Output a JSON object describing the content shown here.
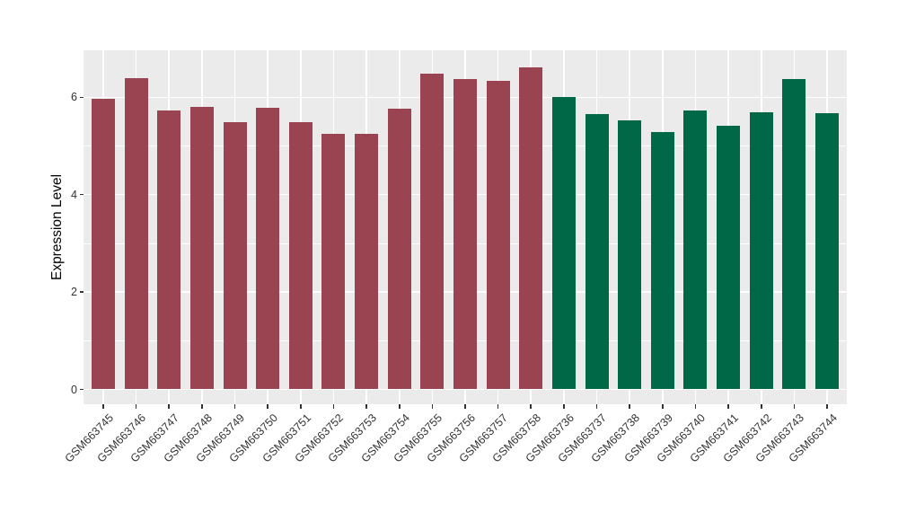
{
  "chart_data": {
    "type": "bar",
    "title": "",
    "xlabel": "",
    "ylabel": "Expression Level",
    "categories": [
      "GSM663745",
      "GSM663746",
      "GSM663747",
      "GSM663748",
      "GSM663749",
      "GSM663750",
      "GSM663751",
      "GSM663752",
      "GSM663753",
      "GSM663754",
      "GSM663755",
      "GSM663756",
      "GSM663757",
      "GSM663758",
      "GSM663736",
      "GSM663737",
      "GSM663738",
      "GSM663739",
      "GSM663740",
      "GSM663741",
      "GSM663742",
      "GSM663743",
      "GSM663744"
    ],
    "values": [
      5.97,
      6.4,
      5.73,
      5.8,
      5.48,
      5.78,
      5.48,
      5.24,
      5.24,
      5.76,
      6.48,
      6.38,
      6.33,
      6.62,
      6.0,
      5.66,
      5.52,
      5.29,
      5.73,
      5.41,
      5.7,
      6.37,
      5.68
    ],
    "colors": [
      "#9B4451",
      "#9B4451",
      "#9B4451",
      "#9B4451",
      "#9B4451",
      "#9B4451",
      "#9B4451",
      "#9B4451",
      "#9B4451",
      "#9B4451",
      "#9B4451",
      "#9B4451",
      "#9B4451",
      "#9B4451",
      "#006847",
      "#006847",
      "#006847",
      "#006847",
      "#006847",
      "#006847",
      "#006847",
      "#006847",
      "#006847"
    ],
    "yticks": [
      0,
      2,
      4,
      6
    ],
    "yticks_minor": [
      1,
      3,
      5
    ],
    "ylim": [
      0,
      7
    ],
    "grid": true,
    "legend": false,
    "panel_bg": "#EBEBEB",
    "grid_color": "#FFFFFF",
    "axis_text_color": "#333333",
    "tick_mark_color": "#333333"
  }
}
